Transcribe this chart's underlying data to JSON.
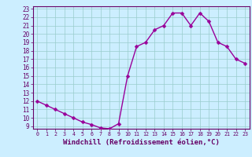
{
  "hours": [
    0,
    1,
    2,
    3,
    4,
    5,
    6,
    7,
    8,
    9,
    10,
    11,
    12,
    13,
    14,
    15,
    16,
    17,
    18,
    19,
    20,
    21,
    22,
    23
  ],
  "values": [
    12,
    11.5,
    11,
    10.5,
    10,
    9.5,
    9.2,
    8.8,
    8.7,
    9.3,
    15,
    18.5,
    19,
    20.5,
    21,
    22.5,
    22.5,
    21,
    22.5,
    21.5,
    19,
    18.5,
    17,
    16.5
  ],
  "line_color": "#990099",
  "marker_color": "#990099",
  "bg_color": "#cceeff",
  "grid_color": "#99cccc",
  "axis_label_color": "#660066",
  "tick_color": "#660066",
  "border_color": "#660066",
  "xlabel": "Windchill (Refroidissement éolien,°C)",
  "ylim_min": 8.7,
  "ylim_max": 23.3,
  "xlim_min": -0.5,
  "xlim_max": 23.5,
  "ytick_min": 9,
  "ytick_max": 23,
  "ytick_step": 1,
  "xtick_values": [
    0,
    1,
    2,
    3,
    4,
    5,
    6,
    7,
    8,
    9,
    10,
    11,
    12,
    13,
    14,
    15,
    16,
    17,
    18,
    19,
    20,
    21,
    22,
    23
  ],
  "line_width": 1.0,
  "marker_size": 2.5,
  "xlabel_fontsize": 6.5,
  "ytick_fontsize": 5.5,
  "xtick_fontsize": 4.8
}
